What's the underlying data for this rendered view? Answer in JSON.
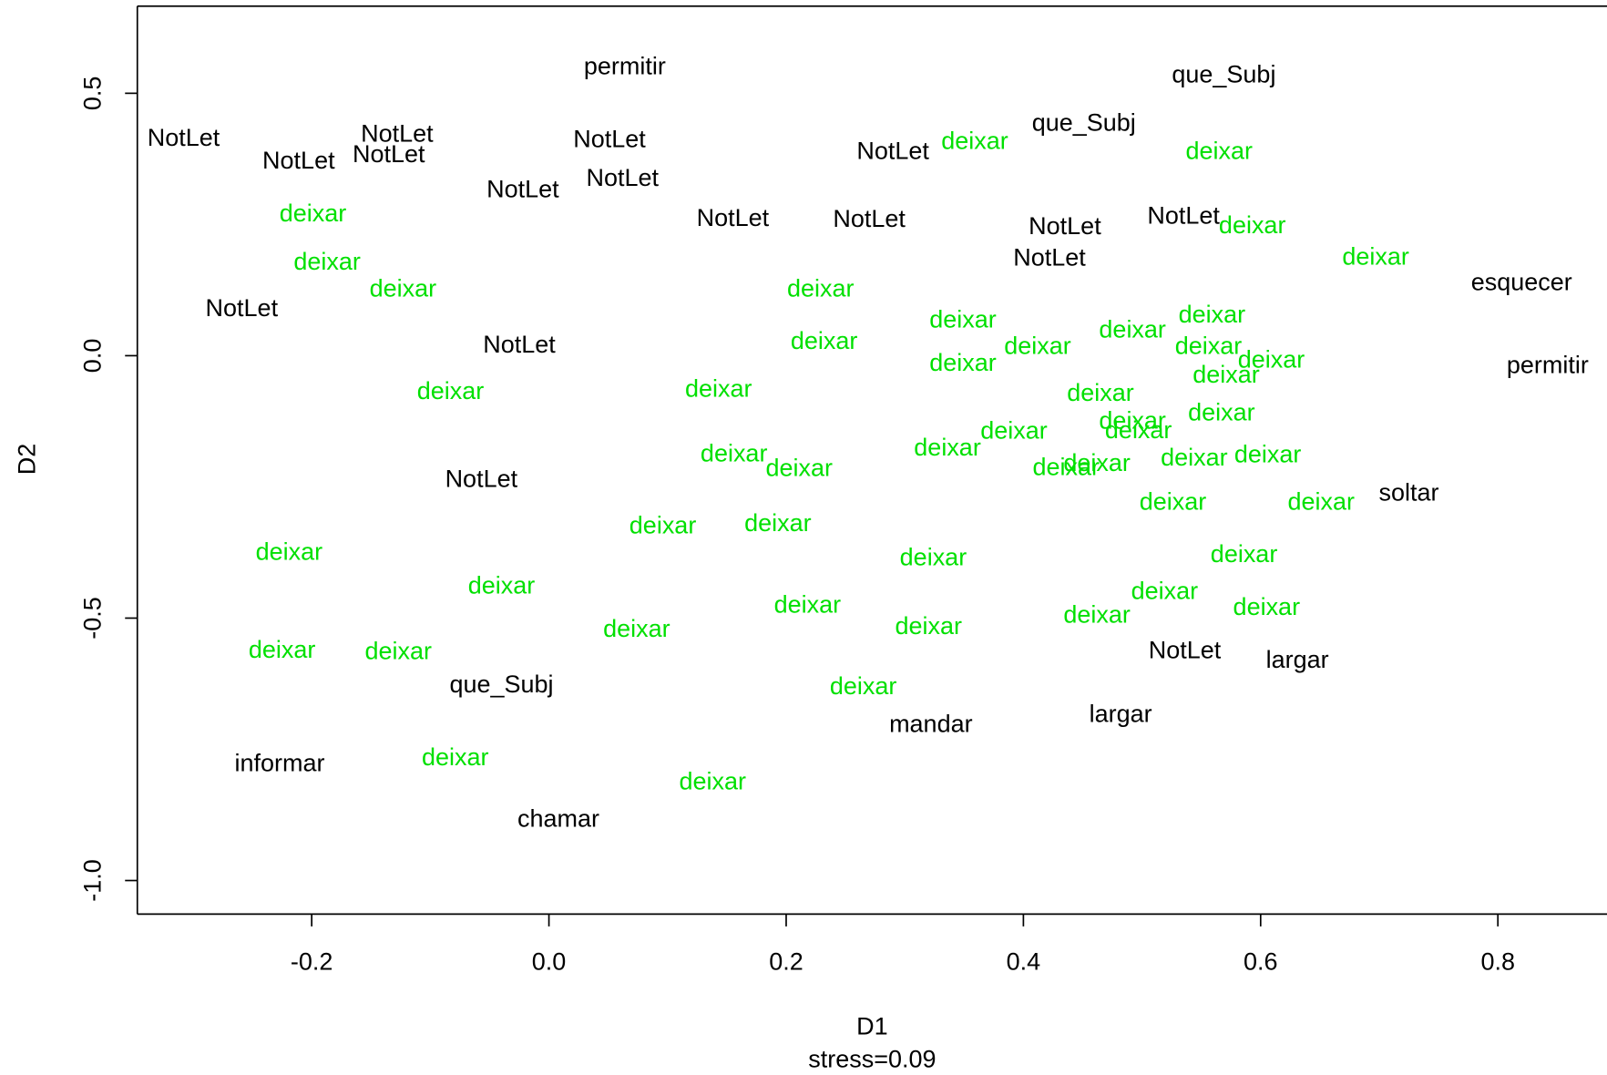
{
  "chart_data": {
    "type": "text-scatter",
    "xlabel": "D1",
    "subtitle": "stress=0.09",
    "ylabel": "D2",
    "xlim": [
      -0.347,
      0.892
    ],
    "ylim": [
      -1.064,
      0.666
    ],
    "xticks": [
      -0.2,
      {
        "value": 0,
        "label": "0.0"
      },
      0.2,
      0.4,
      0.6,
      0.8
    ],
    "yticks": [
      {
        "value": -1,
        "label": "-1.0"
      },
      -0.5,
      {
        "value": 0,
        "label": "0.0"
      },
      0.5
    ],
    "series": [
      {
        "color": "#000000",
        "labels": [
          "permitir",
          "que_Subj",
          "que_Subj",
          "NotLet",
          "NotLet",
          "NotLet",
          "NotLet",
          "NotLet",
          "NotLet",
          "NotLet",
          "NotLet",
          "NotLet",
          "NotLet",
          "NotLet",
          "NotLet",
          "NotLet",
          "esquecer",
          "NotLet",
          "NotLet",
          "permitir",
          "NotLet",
          "soltar",
          "NotLet",
          "largar",
          "que_Subj",
          "largar",
          "mandar",
          "informar",
          "chamar"
        ],
        "x": [
          0.064,
          0.569,
          0.451,
          -0.308,
          -0.128,
          -0.135,
          -0.211,
          0.051,
          0.062,
          -0.022,
          0.29,
          0.155,
          0.27,
          0.435,
          0.535,
          0.422,
          0.82,
          -0.259,
          -0.025,
          0.842,
          -0.057,
          0.725,
          0.536,
          0.631,
          -0.04,
          0.482,
          0.322,
          -0.227,
          0.008
        ],
        "values": [
          0.549,
          0.533,
          0.441,
          0.412,
          0.42,
          0.381,
          0.369,
          0.41,
          0.336,
          0.314,
          0.387,
          0.26,
          0.258,
          0.244,
          0.264,
          0.184,
          0.137,
          0.088,
          0.018,
          -0.021,
          -0.238,
          -0.264,
          -0.564,
          -0.582,
          -0.629,
          -0.686,
          -0.705,
          -0.779,
          -0.885
        ]
      },
      {
        "color": "#00e000",
        "labels": [
          "deixar",
          "deixar",
          "deixar",
          "deixar",
          "deixar",
          "deixar",
          "deixar",
          "deixar",
          "deixar",
          "deixar",
          "deixar",
          "deixar",
          "deixar",
          "deixar",
          "deixar",
          "deixar",
          "deixar",
          "deixar",
          "deixar",
          "deixar",
          "deixar",
          "deixar",
          "deixar",
          "deixar",
          "deixar",
          "deixar",
          "deixar",
          "deixar",
          "deixar",
          "deixar",
          "deixar",
          "deixar",
          "deixar",
          "deixar",
          "deixar",
          "deixar",
          "deixar",
          "deixar",
          "deixar",
          "deixar",
          "deixar",
          "deixar",
          "deixar",
          "deixar",
          "deixar",
          "deixar",
          "deixar",
          "deixar",
          "deixar",
          "deixar"
        ],
        "x": [
          0.359,
          0.565,
          0.593,
          -0.199,
          0.697,
          -0.187,
          -0.123,
          0.229,
          0.349,
          0.559,
          0.492,
          0.232,
          0.412,
          0.556,
          0.349,
          0.609,
          0.571,
          -0.083,
          0.143,
          0.465,
          0.567,
          0.492,
          0.497,
          0.392,
          0.336,
          0.156,
          0.211,
          0.436,
          0.462,
          0.544,
          0.606,
          0.526,
          0.651,
          0.096,
          0.193,
          -0.219,
          0.324,
          0.586,
          -0.04,
          0.519,
          0.218,
          0.462,
          0.605,
          0.074,
          0.32,
          -0.225,
          -0.127,
          0.265,
          -0.079,
          0.138
        ],
        "values": [
          0.406,
          0.387,
          0.246,
          0.268,
          0.186,
          0.176,
          0.125,
          0.125,
          0.066,
          0.076,
          0.047,
          0.025,
          0.016,
          0.016,
          -0.016,
          -0.01,
          -0.039,
          -0.07,
          -0.066,
          -0.074,
          -0.111,
          -0.127,
          -0.145,
          -0.146,
          -0.178,
          -0.189,
          -0.217,
          -0.215,
          -0.207,
          -0.197,
          -0.191,
          -0.281,
          -0.281,
          -0.326,
          -0.322,
          -0.377,
          -0.387,
          -0.381,
          -0.441,
          -0.451,
          -0.477,
          -0.496,
          -0.482,
          -0.523,
          -0.518,
          -0.563,
          -0.566,
          -0.633,
          -0.768,
          -0.814
        ]
      }
    ]
  }
}
